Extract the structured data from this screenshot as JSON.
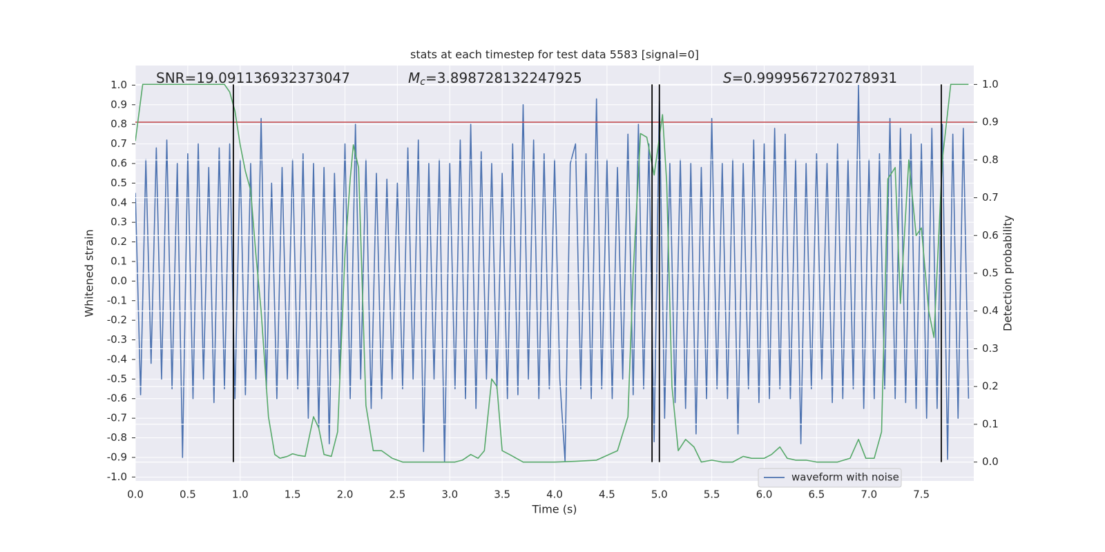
{
  "chart_data": {
    "type": "line",
    "title": "stats at each timestep for test data 5583 [signal=0]",
    "xlabel": "Time (s)",
    "ylabel": "Whitened strain",
    "y2label": "Detection probability",
    "annotations": [
      {
        "text": "SNR=19.091136932373047"
      },
      {
        "symbol": "M",
        "subscript": "c",
        "text": "=3.898728132247925"
      },
      {
        "symbol": "S",
        "text": "=0.9999567270278931"
      }
    ],
    "xlim": [
      0,
      8
    ],
    "ylim": [
      -1.02,
      1.1
    ],
    "y2lim": [
      -0.05,
      1.05
    ],
    "xticks": [
      {
        "value": 0,
        "label": "0.0"
      },
      {
        "value": 0.5,
        "label": "0.5"
      },
      {
        "value": 1,
        "label": "1.0"
      },
      {
        "value": 1.5,
        "label": "1.5"
      },
      {
        "value": 2,
        "label": "2.0"
      },
      {
        "value": 2.5,
        "label": "2.5"
      },
      {
        "value": 3,
        "label": "3.0"
      },
      {
        "value": 3.5,
        "label": "3.5"
      },
      {
        "value": 4,
        "label": "4.0"
      },
      {
        "value": 4.5,
        "label": "4.5"
      },
      {
        "value": 5,
        "label": "5.0"
      },
      {
        "value": 5.5,
        "label": "5.5"
      },
      {
        "value": 6,
        "label": "6.0"
      },
      {
        "value": 6.5,
        "label": "6.5"
      },
      {
        "value": 7,
        "label": "7.0"
      },
      {
        "value": 7.5,
        "label": "7.5"
      }
    ],
    "yticks": [
      {
        "value": -1,
        "label": "-1.0"
      },
      {
        "value": -0.9,
        "label": "-0.9"
      },
      {
        "value": -0.8,
        "label": "-0.8"
      },
      {
        "value": -0.7,
        "label": "-0.7"
      },
      {
        "value": -0.6,
        "label": "-0.6"
      },
      {
        "value": -0.5,
        "label": "-0.5"
      },
      {
        "value": -0.4,
        "label": "-0.4"
      },
      {
        "value": -0.3,
        "label": "-0.3"
      },
      {
        "value": -0.2,
        "label": "-0.2"
      },
      {
        "value": -0.1,
        "label": "-0.1"
      },
      {
        "value": 0,
        "label": "0.0"
      },
      {
        "value": 0.1,
        "label": "0.1"
      },
      {
        "value": 0.2,
        "label": "0.2"
      },
      {
        "value": 0.3,
        "label": "0.3"
      },
      {
        "value": 0.4,
        "label": "0.4"
      },
      {
        "value": 0.5,
        "label": "0.5"
      },
      {
        "value": 0.6,
        "label": "0.6"
      },
      {
        "value": 0.7,
        "label": "0.7"
      },
      {
        "value": 0.8,
        "label": "0.8"
      },
      {
        "value": 0.9,
        "label": "0.9"
      },
      {
        "value": 1,
        "label": "1.0"
      }
    ],
    "y2ticks": [
      {
        "value": 0,
        "label": "0.0"
      },
      {
        "value": 0.1,
        "label": "0.1"
      },
      {
        "value": 0.2,
        "label": "0.2"
      },
      {
        "value": 0.3,
        "label": "0.3"
      },
      {
        "value": 0.4,
        "label": "0.4"
      },
      {
        "value": 0.5,
        "label": "0.5"
      },
      {
        "value": 0.6,
        "label": "0.6"
      },
      {
        "value": 0.7,
        "label": "0.7"
      },
      {
        "value": 0.8,
        "label": "0.8"
      },
      {
        "value": 0.9,
        "label": "0.9"
      },
      {
        "value": 1,
        "label": "1.0"
      }
    ],
    "grid": true,
    "legend": "lower right",
    "series": [
      {
        "name": "waveform with noise",
        "color": "#4c72b0",
        "x": [
          0,
          0.05,
          0.1,
          0.15,
          0.2,
          0.25,
          0.3,
          0.35,
          0.4,
          0.45,
          0.5,
          0.55,
          0.6,
          0.65,
          0.7,
          0.75,
          0.8,
          0.85,
          0.9,
          0.95,
          1,
          1.05,
          1.1,
          1.15,
          1.2,
          1.25,
          1.3,
          1.35,
          1.4,
          1.45,
          1.5,
          1.55,
          1.6,
          1.65,
          1.7,
          1.75,
          1.8,
          1.85,
          1.9,
          1.95,
          2,
          2.05,
          2.1,
          2.15,
          2.2,
          2.25,
          2.3,
          2.35,
          2.4,
          2.45,
          2.5,
          2.55,
          2.6,
          2.65,
          2.7,
          2.75,
          2.8,
          2.85,
          2.9,
          2.95,
          3,
          3.05,
          3.1,
          3.15,
          3.2,
          3.25,
          3.3,
          3.35,
          3.4,
          3.45,
          3.5,
          3.55,
          3.6,
          3.65,
          3.7,
          3.75,
          3.8,
          3.85,
          3.9,
          3.95,
          4,
          4.05,
          4.1,
          4.15,
          4.2,
          4.25,
          4.3,
          4.35,
          4.4,
          4.45,
          4.5,
          4.55,
          4.6,
          4.65,
          4.7,
          4.75,
          4.8,
          4.85,
          4.9,
          4.95,
          5,
          5.05,
          5.1,
          5.15,
          5.2,
          5.25,
          5.3,
          5.35,
          5.4,
          5.45,
          5.5,
          5.55,
          5.6,
          5.65,
          5.7,
          5.75,
          5.8,
          5.85,
          5.9,
          5.95,
          6,
          6.05,
          6.1,
          6.15,
          6.2,
          6.25,
          6.3,
          6.35,
          6.4,
          6.45,
          6.5,
          6.55,
          6.6,
          6.65,
          6.7,
          6.75,
          6.8,
          6.85,
          6.9,
          6.95,
          7,
          7.05,
          7.1,
          7.15,
          7.2,
          7.25,
          7.3,
          7.35,
          7.4,
          7.45,
          7.5,
          7.55,
          7.6,
          7.65,
          7.7,
          7.75,
          7.8,
          7.85,
          7.9,
          7.95
        ],
        "values": [
          0.45,
          -0.58,
          0.62,
          -0.42,
          0.68,
          -0.5,
          0.72,
          -0.55,
          0.6,
          -0.9,
          0.65,
          -0.6,
          0.7,
          -0.5,
          0.58,
          -0.62,
          0.68,
          -0.55,
          0.7,
          -0.6,
          0.62,
          -0.58,
          0.6,
          -0.5,
          0.83,
          -0.55,
          0.5,
          -0.6,
          0.58,
          -0.5,
          0.62,
          -0.55,
          0.65,
          -0.7,
          0.6,
          -0.75,
          0.58,
          -0.83,
          0.55,
          -0.5,
          0.7,
          -0.6,
          0.8,
          -0.5,
          0.62,
          -0.65,
          0.55,
          -0.6,
          0.52,
          -0.5,
          0.5,
          -0.55,
          0.68,
          -0.5,
          0.72,
          -0.87,
          0.6,
          -0.5,
          0.62,
          -0.92,
          0.6,
          -0.55,
          0.72,
          -0.6,
          0.8,
          -0.65,
          0.66,
          -0.5,
          0.6,
          -0.55,
          0.55,
          -0.6,
          0.7,
          -0.58,
          0.9,
          -0.5,
          0.72,
          -0.6,
          0.65,
          -0.55,
          0.62,
          -0.5,
          -0.92,
          0.6,
          0.7,
          -0.55,
          0.65,
          -0.6,
          0.93,
          -0.55,
          0.62,
          -0.6,
          0.58,
          -0.5,
          0.75,
          -0.58,
          0.8,
          -0.55,
          0.7,
          -0.82,
          0.92,
          -0.7,
          0.6,
          -0.62,
          0.62,
          -0.65,
          0.6,
          -0.78,
          0.58,
          -0.6,
          0.83,
          -0.55,
          0.6,
          -0.6,
          0.62,
          -0.78,
          0.6,
          -0.55,
          0.72,
          -0.62,
          0.7,
          -0.6,
          0.78,
          -0.55,
          0.75,
          -0.6,
          0.62,
          -0.83,
          0.6,
          -0.55,
          0.65,
          -0.5,
          0.6,
          -0.62,
          0.7,
          -0.6,
          0.62,
          -0.55,
          1.0,
          -0.65,
          0.62,
          -0.6,
          0.65,
          -0.55,
          0.83,
          -0.6,
          0.78,
          -0.62,
          0.75,
          -0.65,
          0.7,
          -0.7,
          0.78,
          -0.65,
          0.8,
          -0.91,
          0.75,
          -0.7,
          0.78,
          -0.6
        ]
      },
      {
        "color": "#55a868",
        "axis": "y2",
        "x": [
          0,
          0.07,
          0.13,
          0.85,
          0.9,
          0.95,
          1,
          1.05,
          1.1,
          1.15,
          1.2,
          1.27,
          1.33,
          1.38,
          1.45,
          1.5,
          1.55,
          1.62,
          1.7,
          1.75,
          1.8,
          1.87,
          1.93,
          2,
          2.05,
          2.08,
          2.13,
          2.2,
          2.27,
          2.35,
          2.45,
          2.55,
          2.65,
          2.9,
          3.05,
          3.12,
          3.2,
          3.27,
          3.33,
          3.4,
          3.45,
          3.5,
          3.57,
          3.7,
          4,
          4.2,
          4.4,
          4.6,
          4.7,
          4.75,
          4.82,
          4.88,
          4.95,
          5.03,
          5.07,
          5.12,
          5.18,
          5.25,
          5.33,
          5.4,
          5.5,
          5.6,
          5.7,
          5.8,
          5.88,
          6,
          6.07,
          6.15,
          6.22,
          6.3,
          6.4,
          6.5,
          6.7,
          6.82,
          6.9,
          6.97,
          7.05,
          7.12,
          7.18,
          7.25,
          7.3,
          7.38,
          7.45,
          7.5,
          7.57,
          7.62,
          7.7,
          7.78,
          7.85,
          7.95
        ],
        "values": [
          0.85,
          1.0,
          1.0,
          1.0,
          0.98,
          0.93,
          0.84,
          0.77,
          0.72,
          0.55,
          0.4,
          0.12,
          0.02,
          0.01,
          0.015,
          0.022,
          0.018,
          0.015,
          0.12,
          0.09,
          0.02,
          0.015,
          0.08,
          0.55,
          0.75,
          0.84,
          0.78,
          0.15,
          0.03,
          0.03,
          0.01,
          0.0,
          0.0,
          0.0,
          0.0,
          0.005,
          0.02,
          0.01,
          0.03,
          0.22,
          0.2,
          0.03,
          0.02,
          0.0,
          0.0,
          0.002,
          0.005,
          0.03,
          0.12,
          0.5,
          0.87,
          0.86,
          0.76,
          0.92,
          0.74,
          0.2,
          0.03,
          0.06,
          0.04,
          0.0,
          0.005,
          0.0,
          0.0,
          0.015,
          0.01,
          0.01,
          0.02,
          0.04,
          0.01,
          0.005,
          0.005,
          0.0,
          0.0,
          0.01,
          0.06,
          0.01,
          0.01,
          0.08,
          0.75,
          0.78,
          0.42,
          0.8,
          0.6,
          0.62,
          0.4,
          0.33,
          0.8,
          1.0,
          1.0,
          1.0
        ]
      }
    ],
    "hlines": [
      {
        "value": 0.9,
        "axis": "y2",
        "color": "#c44e52"
      }
    ],
    "vlines": {
      "x": [
        0.935,
        4.93,
        5.0,
        7.69
      ],
      "ymin": 0,
      "ymax": 1,
      "axis": "y2",
      "color": "#000000"
    }
  }
}
